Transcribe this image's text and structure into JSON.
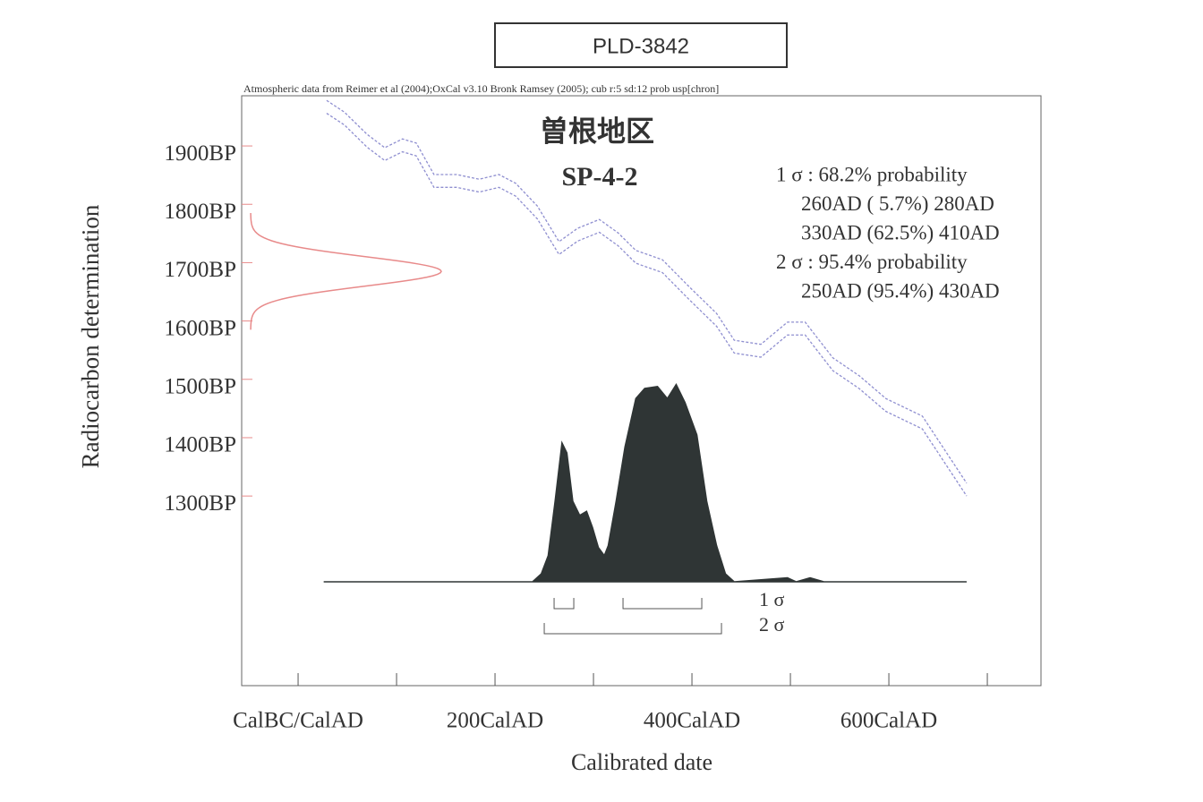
{
  "chart_data": {
    "type": "calibration",
    "title": "PLD-3842",
    "header": "Atmospheric data from Reimer et al (2004);OxCal v3.10 Bronk Ramsey (2005); cub r:5 sd:12 prob usp[chron]",
    "site": "曽根地区",
    "sample": "SP-4-2",
    "x_label": "Calibrated date",
    "y_label": "Radiocarbon determination",
    "xlim": [
      -57.3,
      754.5
    ],
    "ylim": [
      975,
      1986
    ],
    "xticks": [
      {
        "value": 0,
        "label": "CalBC/CalAD"
      },
      {
        "value": 200,
        "label": "200CalAD"
      },
      {
        "value": 400,
        "label": "400CalAD"
      },
      {
        "value": 600,
        "label": "600CalAD"
      }
    ],
    "xminor_ticks": [
      100,
      300,
      500,
      700
    ],
    "yticks": [
      {
        "value": 1900,
        "label": "1900BP"
      },
      {
        "value": 1800,
        "label": "1800BP"
      },
      {
        "value": 1700,
        "label": "1700BP"
      },
      {
        "value": 1600,
        "label": "1600BP"
      },
      {
        "value": 1500,
        "label": "1500BP"
      },
      {
        "value": 1400,
        "label": "1400BP"
      },
      {
        "value": 1300,
        "label": "1300BP"
      }
    ],
    "curve": {
      "color": "#8f8fd0",
      "x": [
        29,
        47,
        70,
        88,
        106,
        120,
        138,
        161,
        184,
        204,
        221,
        243,
        265,
        284,
        306,
        325,
        343,
        370,
        397,
        425,
        443,
        470,
        497,
        515,
        543,
        570,
        597,
        634,
        661,
        679
      ],
      "upper": [
        1978,
        1958,
        1920,
        1897,
        1912,
        1905,
        1851,
        1851,
        1843,
        1851,
        1836,
        1797,
        1736,
        1759,
        1774,
        1751,
        1721,
        1705,
        1659,
        1613,
        1567,
        1560,
        1598,
        1598,
        1537,
        1506,
        1467,
        1437,
        1368,
        1322
      ],
      "lower": [
        1956,
        1936,
        1898,
        1875,
        1890,
        1883,
        1829,
        1829,
        1821,
        1829,
        1814,
        1775,
        1714,
        1737,
        1752,
        1729,
        1699,
        1683,
        1637,
        1591,
        1545,
        1538,
        1576,
        1576,
        1515,
        1484,
        1445,
        1415,
        1346,
        1300
      ]
    },
    "measurement": {
      "mean": 1685,
      "sd": 25,
      "color": "#e88a8a"
    },
    "probability": {
      "color": "#2f3535",
      "x": [
        26,
        238,
        247,
        254,
        261,
        268,
        273,
        279,
        286,
        293,
        299,
        305,
        311,
        315,
        323,
        332,
        343,
        352,
        365,
        375,
        384,
        393,
        405,
        415,
        425,
        434,
        443,
        497,
        506,
        520,
        534,
        679
      ],
      "values": [
        0,
        0,
        0.04,
        0.13,
        0.4,
        0.69,
        0.64,
        0.4,
        0.33,
        0.35,
        0.27,
        0.17,
        0.13,
        0.18,
        0.4,
        0.67,
        0.91,
        0.96,
        0.97,
        0.91,
        0.98,
        0.89,
        0.73,
        0.4,
        0.18,
        0.04,
        0,
        0.02,
        0,
        0.02,
        0,
        0
      ]
    },
    "sigma_ranges": [
      {
        "label": "1 σ",
        "heading": "1 σ  : 68.2% probability",
        "ranges": [
          {
            "from": 260,
            "to": 280,
            "text": "260AD ( 5.7%) 280AD"
          },
          {
            "from": 330,
            "to": 410,
            "text": "330AD (62.5%) 410AD"
          }
        ]
      },
      {
        "label": "2 σ",
        "heading": "2 σ  : 95.4% probability",
        "ranges": [
          {
            "from": 250,
            "to": 430,
            "text": "250AD (95.4%) 430AD"
          }
        ]
      }
    ]
  }
}
